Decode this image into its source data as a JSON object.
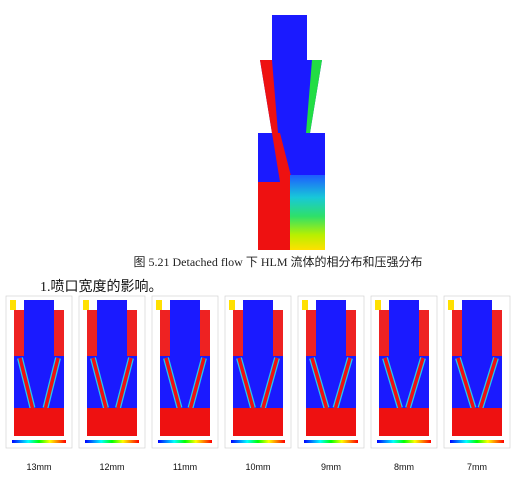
{
  "figure_caption": "图 5.21 Detached flow 下 HLM 流体的相分布和压强分布",
  "section_heading": "1.喷口宽度的影响。",
  "panels": [
    {
      "label": "13mm"
    },
    {
      "label": "12mm"
    },
    {
      "label": "11mm"
    },
    {
      "label": "10mm"
    },
    {
      "label": "9mm"
    },
    {
      "label": "8mm"
    },
    {
      "label": "7mm"
    }
  ]
}
